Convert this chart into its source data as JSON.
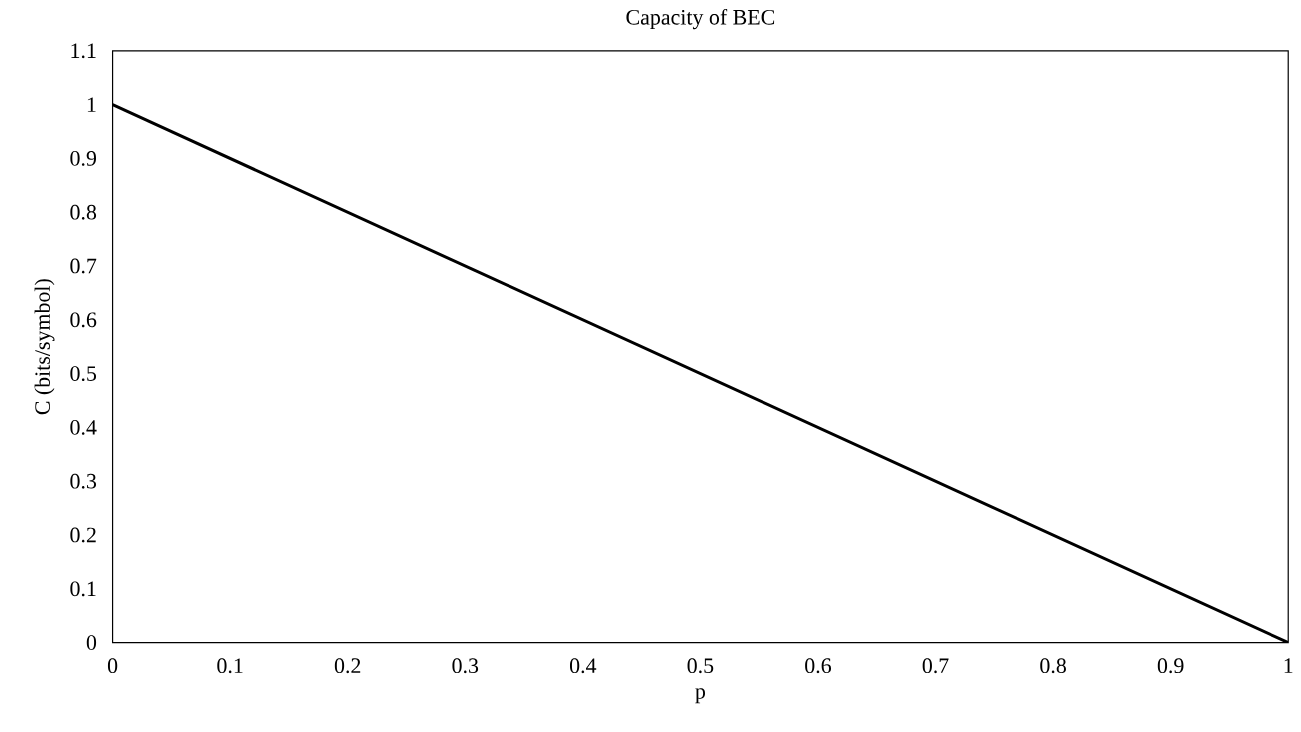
{
  "chart_data": {
    "type": "line",
    "title": "Capacity of BEC",
    "xlabel": "p",
    "ylabel": "C (bits/symbol)",
    "x": [
      0,
      1
    ],
    "series": [
      {
        "color": "#000000",
        "values": [
          1,
          0
        ]
      }
    ],
    "xlim": [
      0,
      1
    ],
    "ylim": [
      0,
      1.1
    ],
    "xticks": [
      0,
      0.1,
      0.2,
      0.3,
      0.4,
      0.5,
      0.6,
      0.7,
      0.8,
      0.9,
      1
    ],
    "yticks": [
      0,
      0.1,
      0.2,
      0.3,
      0.4,
      0.5,
      0.6,
      0.7,
      0.8,
      0.9,
      1,
      1.1
    ],
    "grid": false,
    "marker": "none",
    "line_style": "solid"
  }
}
